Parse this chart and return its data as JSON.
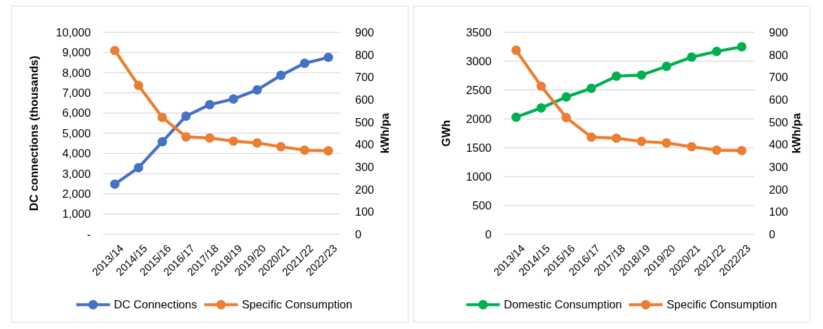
{
  "chart_data": [
    {
      "type": "line",
      "ylabel": "DC connections (thousands)",
      "y2label": "kWh/pa",
      "categories": [
        "2013/14",
        "2014/15",
        "2015/16",
        "2016/17",
        "2017/18",
        "2018/19",
        "2019/20",
        "2020/21",
        "2021/22",
        "2022/23"
      ],
      "series": [
        {
          "name": "DC Connections",
          "color": "#4472c4",
          "values": [
            2480,
            3300,
            4580,
            5850,
            6420,
            6700,
            7150,
            7870,
            8470,
            8760
          ]
        },
        {
          "name": "Specific Consumption",
          "color": "#ed7d31",
          "axis": "y2",
          "values": [
            819,
            663,
            521,
            434,
            429,
            415,
            407,
            390,
            375,
            372
          ]
        }
      ],
      "ylim": [
        0,
        10000
      ],
      "yticks": [
        {
          "value": 0,
          "label": "-"
        },
        {
          "value": 1000,
          "label": "1,000"
        },
        {
          "value": 2000,
          "label": "2,000"
        },
        {
          "value": 3000,
          "label": "3,000"
        },
        {
          "value": 4000,
          "label": "4,000"
        },
        {
          "value": 5000,
          "label": "5,000"
        },
        {
          "value": 6000,
          "label": "6,000"
        },
        {
          "value": 7000,
          "label": "7,000"
        },
        {
          "value": 8000,
          "label": "8,000"
        },
        {
          "value": 9000,
          "label": "9,000"
        },
        {
          "value": 10000,
          "label": "10,000"
        }
      ],
      "y2lim": [
        0,
        900
      ],
      "y2ticks": [
        0,
        100,
        200,
        300,
        400,
        500,
        600,
        700,
        800,
        900
      ],
      "grid": "y",
      "legend": "bottom",
      "marker": "circle"
    },
    {
      "type": "line",
      "ylabel": "GWh",
      "y2label": "kWh/pa",
      "categories": [
        "2013/14",
        "2014/15",
        "2015/16",
        "2016/17",
        "2017/18",
        "2018/19",
        "2019/20",
        "2020/21",
        "2021/22",
        "2022/23"
      ],
      "series": [
        {
          "name": "Domestic Consumption",
          "color": "#00b050",
          "values": [
            2030,
            2190,
            2380,
            2530,
            2740,
            2760,
            2910,
            3070,
            3170,
            3250
          ]
        },
        {
          "name": "Specific Consumption",
          "color": "#ed7d31",
          "axis": "y2",
          "values": [
            820,
            660,
            520,
            433,
            428,
            414,
            407,
            390,
            375,
            373
          ]
        }
      ],
      "ylim": [
        0,
        3500
      ],
      "yticks": [
        0,
        500,
        1000,
        1500,
        2000,
        2500,
        3000,
        3500
      ],
      "y2lim": [
        0,
        900
      ],
      "y2ticks": [
        0,
        100,
        200,
        300,
        400,
        500,
        600,
        700,
        800,
        900
      ],
      "grid": "y",
      "legend": "bottom",
      "marker": "circle"
    }
  ]
}
